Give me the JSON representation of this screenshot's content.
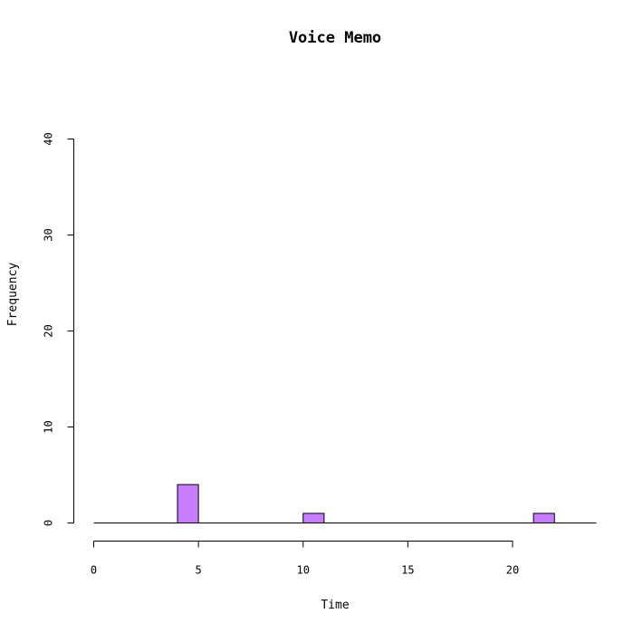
{
  "chart_data": {
    "type": "bar",
    "title": "Voice Memo",
    "xlabel": "Time",
    "ylabel": "Frequency",
    "bin_width": 1,
    "bins": [
      {
        "start": 4,
        "end": 5,
        "count": 4
      },
      {
        "start": 10,
        "end": 11,
        "count": 1
      },
      {
        "start": 21,
        "end": 22,
        "count": 1
      }
    ],
    "xlim": [
      0,
      24
    ],
    "ylim": [
      0,
      40
    ],
    "xticks": [
      "0",
      "5",
      "10",
      "15",
      "20"
    ],
    "yticks": [
      "0",
      "10",
      "20",
      "30",
      "40"
    ],
    "bar_color": "#c77cff",
    "grid": false,
    "legend": "none"
  }
}
